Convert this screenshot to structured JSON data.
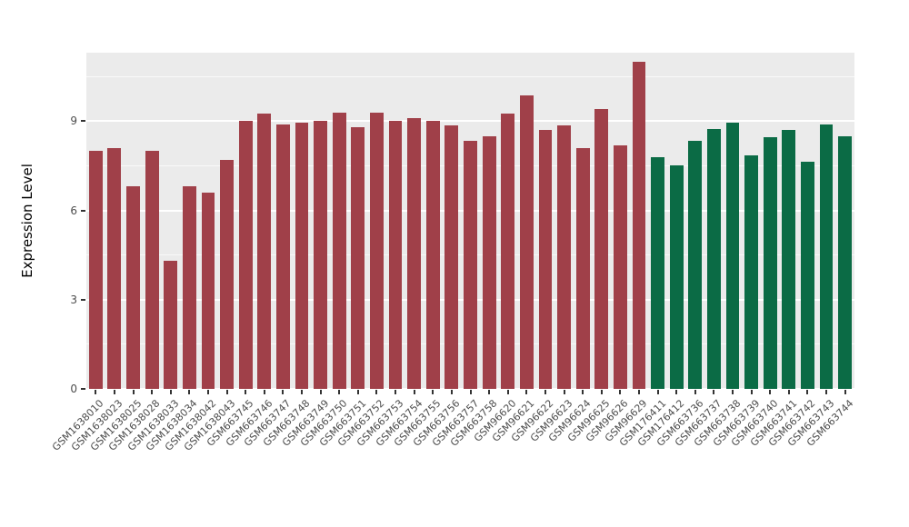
{
  "chart_data": {
    "type": "bar",
    "title": "",
    "xlabel": "",
    "ylabel": "Expression Level",
    "ylim": [
      0,
      11.3
    ],
    "yticks": [
      0,
      3,
      6,
      9
    ],
    "grid": "on",
    "legend": "none",
    "panel_background": "#EBEBEB",
    "grid_color": "#FFFFFF",
    "palette": {
      "groupA": "#A04049",
      "groupB": "#0B6B45"
    },
    "categories": [
      "GSM1638010",
      "GSM1638023",
      "GSM1638025",
      "GSM1638028",
      "GSM1638033",
      "GSM1638034",
      "GSM1638042",
      "GSM1638043",
      "GSM663745",
      "GSM663746",
      "GSM663747",
      "GSM663748",
      "GSM663749",
      "GSM663750",
      "GSM663751",
      "GSM663752",
      "GSM663753",
      "GSM663754",
      "GSM663755",
      "GSM663756",
      "GSM663757",
      "GSM663758",
      "GSM96620",
      "GSM96621",
      "GSM96622",
      "GSM96623",
      "GSM96624",
      "GSM96625",
      "GSM96626",
      "GSM96629",
      "GSM176411",
      "GSM176412",
      "GSM663736",
      "GSM663737",
      "GSM663738",
      "GSM663739",
      "GSM663740",
      "GSM663741",
      "GSM663742",
      "GSM663743",
      "GSM663744"
    ],
    "values": [
      8.0,
      8.1,
      6.8,
      8.0,
      4.3,
      6.8,
      6.6,
      7.7,
      9.0,
      9.25,
      8.9,
      8.95,
      9.0,
      9.3,
      8.8,
      9.3,
      9.0,
      9.1,
      9.0,
      8.85,
      8.35,
      8.5,
      9.25,
      9.85,
      8.7,
      8.85,
      8.1,
      9.4,
      8.2,
      11.0,
      7.8,
      7.5,
      8.35,
      8.75,
      8.95,
      7.85,
      8.45,
      8.7,
      7.65,
      8.9,
      8.5
    ],
    "groups": [
      "groupA",
      "groupA",
      "groupA",
      "groupA",
      "groupA",
      "groupA",
      "groupA",
      "groupA",
      "groupA",
      "groupA",
      "groupA",
      "groupA",
      "groupA",
      "groupA",
      "groupA",
      "groupA",
      "groupA",
      "groupA",
      "groupA",
      "groupA",
      "groupA",
      "groupA",
      "groupA",
      "groupA",
      "groupA",
      "groupA",
      "groupA",
      "groupA",
      "groupA",
      "groupA",
      "groupB",
      "groupB",
      "groupB",
      "groupB",
      "groupB",
      "groupB",
      "groupB",
      "groupB",
      "groupB",
      "groupB",
      "groupB"
    ]
  }
}
